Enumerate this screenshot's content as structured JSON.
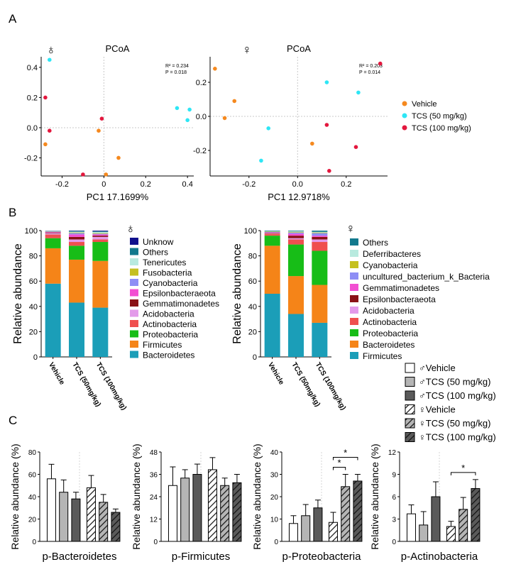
{
  "panel_labels": {
    "a": "A",
    "b": "B",
    "c": "C"
  },
  "sex_symbols": {
    "male": "♁",
    "female": "♀"
  },
  "chart_data": [
    {
      "id": "pcoa_male",
      "type": "scatter",
      "title": "PCoA",
      "sex": "male",
      "xlabel": "PC1 17.1699%",
      "ylabel": "",
      "xlim": [
        -0.3,
        0.43
      ],
      "ylim": [
        -0.32,
        0.47
      ],
      "xticks": [
        -0.2,
        0,
        0.2,
        0.4
      ],
      "xtick_labels": [
        "-0.2",
        "0",
        "0.2",
        "0.4"
      ],
      "yticks": [
        -0.2,
        0,
        0.2,
        0.4
      ],
      "ytick_labels": [
        "-0.2",
        "0.0",
        "0.2",
        "0.4"
      ],
      "stat_lines": [
        "R² = 0.234",
        "P = 0.018"
      ],
      "series": [
        {
          "name": "Vehicle",
          "color": "#f5891f",
          "points": [
            [
              -0.28,
              -0.11
            ],
            [
              -0.025,
              -0.02
            ],
            [
              0.07,
              -0.2
            ],
            [
              0.01,
              -0.31
            ]
          ]
        },
        {
          "name": "TCS (50 mg/kg)",
          "color": "#2ee6f5",
          "points": [
            [
              -0.26,
              0.45
            ],
            [
              0.35,
              0.13
            ],
            [
              0.41,
              0.12
            ],
            [
              0.4,
              0.05
            ]
          ]
        },
        {
          "name": "TCS (100 mg/kg)",
          "color": "#e3173d",
          "points": [
            [
              -0.28,
              0.2
            ],
            [
              -0.26,
              -0.02
            ],
            [
              -0.1,
              -0.31
            ],
            [
              -0.01,
              0.06
            ]
          ]
        }
      ]
    },
    {
      "id": "pcoa_female",
      "type": "scatter",
      "title": "PCoA",
      "sex": "female",
      "xlabel": "PC1 12.9718%",
      "ylabel": "",
      "xlim": [
        -0.36,
        0.37
      ],
      "ylim": [
        -0.35,
        0.35
      ],
      "xticks": [
        -0.2,
        0,
        0.2
      ],
      "xtick_labels": [
        "-0.2",
        "0.0",
        "0.2"
      ],
      "yticks": [
        -0.2,
        0,
        0.2
      ],
      "ytick_labels": [
        "-0.2",
        "0.0",
        "0.2"
      ],
      "stat_lines": [
        "R² = 0.203",
        "P = 0.014"
      ],
      "series": [
        {
          "name": "Vehicle",
          "color": "#f5891f",
          "points": [
            [
              -0.34,
              0.28
            ],
            [
              -0.26,
              0.09
            ],
            [
              -0.3,
              -0.01
            ],
            [
              0.06,
              -0.16
            ]
          ]
        },
        {
          "name": "TCS (50 mg/kg)",
          "color": "#2ee6f5",
          "points": [
            [
              0.12,
              0.2
            ],
            [
              0.25,
              0.14
            ],
            [
              -0.12,
              -0.07
            ],
            [
              -0.15,
              -0.26
            ]
          ]
        },
        {
          "name": "TCS (100 mg/kg)",
          "color": "#e3173d",
          "points": [
            [
              0.34,
              0.31
            ],
            [
              0.12,
              -0.05
            ],
            [
              0.24,
              -0.18
            ],
            [
              0.13,
              -0.32
            ]
          ]
        }
      ]
    },
    {
      "id": "abund_male",
      "type": "bar",
      "stacked": true,
      "sex": "male",
      "ylabel": "Relative abundance",
      "ylim": [
        0,
        100
      ],
      "yticks": [
        0,
        20,
        40,
        60,
        80,
        100
      ],
      "categories": [
        "Vehicle",
        "TCS (50mg/kg)",
        "TCS (100mg/kg)"
      ],
      "series": [
        {
          "name": "Bacteroidetes",
          "color": "#1b9eb8",
          "values": [
            58,
            43,
            39
          ]
        },
        {
          "name": "Firmicutes",
          "color": "#f58418",
          "values": [
            28,
            34,
            37
          ]
        },
        {
          "name": "Proteobacteria",
          "color": "#17bd17",
          "values": [
            8,
            11,
            15
          ]
        },
        {
          "name": "Actinobacteria",
          "color": "#ef4f4f",
          "values": [
            3,
            3,
            2
          ]
        },
        {
          "name": "Acidobacteria",
          "color": "#e39aea",
          "values": [
            1,
            2,
            2
          ]
        },
        {
          "name": "Gemmatimonadetes",
          "color": "#8a1116",
          "values": [
            0.5,
            2,
            1
          ]
        },
        {
          "name": "Epsilonbacteraeota",
          "color": "#f24fd2",
          "values": [
            0.5,
            2,
            1
          ]
        },
        {
          "name": "Cyanobacteria",
          "color": "#8e8ef5",
          "values": [
            0.3,
            1,
            0.5
          ]
        },
        {
          "name": "Fusobacteria",
          "color": "#c5c020",
          "values": [
            0.2,
            0.5,
            0.5
          ]
        },
        {
          "name": "Tenericutes",
          "color": "#b8eadf",
          "values": [
            0.2,
            0.7,
            1
          ]
        },
        {
          "name": "Others",
          "color": "#12798d",
          "values": [
            0.2,
            0.5,
            0.5
          ]
        },
        {
          "name": "Unknow",
          "color": "#10108c",
          "values": [
            0.1,
            0.3,
            0.5
          ]
        }
      ]
    },
    {
      "id": "abund_female",
      "type": "bar",
      "stacked": true,
      "sex": "female",
      "ylabel": "Relative abundance",
      "ylim": [
        0,
        100
      ],
      "yticks": [
        0,
        20,
        40,
        60,
        80,
        100
      ],
      "categories": [
        "Vehicle",
        "TCS (50mg/kg)",
        "TCS (100mg/kg)"
      ],
      "series": [
        {
          "name": "Firmicutes",
          "color": "#1b9eb8",
          "values": [
            50,
            34,
            27
          ]
        },
        {
          "name": "Bacteroidetes",
          "color": "#f58418",
          "values": [
            38,
            30,
            30
          ]
        },
        {
          "name": "Proteobacteria",
          "color": "#17bd17",
          "values": [
            8,
            25,
            27
          ]
        },
        {
          "name": "Actinobacteria",
          "color": "#ef4f4f",
          "values": [
            1.5,
            4,
            7
          ]
        },
        {
          "name": "Acidobacteria",
          "color": "#e39aea",
          "values": [
            0.5,
            1,
            2
          ]
        },
        {
          "name": "Epsilonbacteraeota",
          "color": "#8a1116",
          "values": [
            0.3,
            2,
            2
          ]
        },
        {
          "name": "Gemmatimonadetes",
          "color": "#f24fd2",
          "values": [
            0.3,
            1.5,
            1
          ]
        },
        {
          "name": "uncultured_bacterium_k_Bacteria",
          "color": "#8e8ef5",
          "values": [
            0.3,
            1,
            2
          ]
        },
        {
          "name": "Cyanobacteria",
          "color": "#c5c020",
          "values": [
            0.3,
            0.5,
            0.5
          ]
        },
        {
          "name": "Deferribacteres",
          "color": "#b8eadf",
          "values": [
            0.3,
            0.5,
            0.5
          ]
        },
        {
          "name": "Others",
          "color": "#12798d",
          "values": [
            0.5,
            0.5,
            1
          ]
        }
      ]
    },
    {
      "id": "c_bacteroidetes",
      "type": "bar",
      "xlabel": "p-Bacteroidetes",
      "ylabel": "Relative abundance (%)",
      "ylim": [
        0,
        80
      ],
      "yticks": [
        0,
        20,
        40,
        60,
        80
      ],
      "values": [
        56,
        44,
        38,
        48,
        35,
        26
      ],
      "errors": [
        13,
        11,
        6,
        11,
        7,
        3
      ],
      "significance": []
    },
    {
      "id": "c_firmicutes",
      "type": "bar",
      "xlabel": "p-Firmicutes",
      "ylabel": "Relative abundance (%)",
      "ylim": [
        0,
        48
      ],
      "yticks": [
        0,
        12,
        24,
        36,
        48
      ],
      "values": [
        30,
        34,
        36,
        38.5,
        30,
        31.5
      ],
      "errors": [
        10,
        4.5,
        5.5,
        6.5,
        4,
        4.5
      ],
      "significance": []
    },
    {
      "id": "c_proteobacteria",
      "type": "bar",
      "xlabel": "p-Proteobacteria",
      "ylabel": "Relative abundance (%)",
      "ylim": [
        0,
        40
      ],
      "yticks": [
        0,
        10,
        20,
        30,
        40
      ],
      "values": [
        8,
        11.5,
        15,
        8.5,
        24.5,
        27
      ],
      "errors": [
        3.5,
        5,
        3.5,
        4.5,
        5.5,
        3
      ],
      "significance": [
        [
          3,
          4,
          "*"
        ],
        [
          3,
          5,
          "*"
        ]
      ]
    },
    {
      "id": "c_actinobacteria",
      "type": "bar",
      "xlabel": "p-Actinobacteria",
      "ylabel": "Relative abundance (%)",
      "ylim": [
        0,
        12
      ],
      "yticks": [
        0,
        3,
        6,
        9,
        12
      ],
      "values": [
        3.7,
        2.2,
        6,
        2,
        4.3,
        7.1
      ],
      "errors": [
        1.2,
        1.8,
        2,
        0.7,
        1.6,
        1.2
      ],
      "significance": [
        [
          3,
          5,
          "*"
        ]
      ]
    }
  ],
  "pcoa_legend": [
    {
      "label": "Vehicle",
      "color": "#f5891f"
    },
    {
      "label": "TCS (50 mg/kg)",
      "color": "#2ee6f5"
    },
    {
      "label": "TCS (100 mg/kg)",
      "color": "#e3173d"
    }
  ],
  "c_legend": [
    {
      "label": "♂Vehicle",
      "fill": "white"
    },
    {
      "label": "♂TCS (50 mg/kg)",
      "fill": "light"
    },
    {
      "label": "♂TCS (100 mg/kg)",
      "fill": "dark"
    },
    {
      "label": "♀Vehicle",
      "fill": "hatch-white"
    },
    {
      "label": "♀TCS (50 mg/kg)",
      "fill": "hatch-light"
    },
    {
      "label": "♀TCS (100 mg/kg)",
      "fill": "hatch-dark"
    }
  ]
}
